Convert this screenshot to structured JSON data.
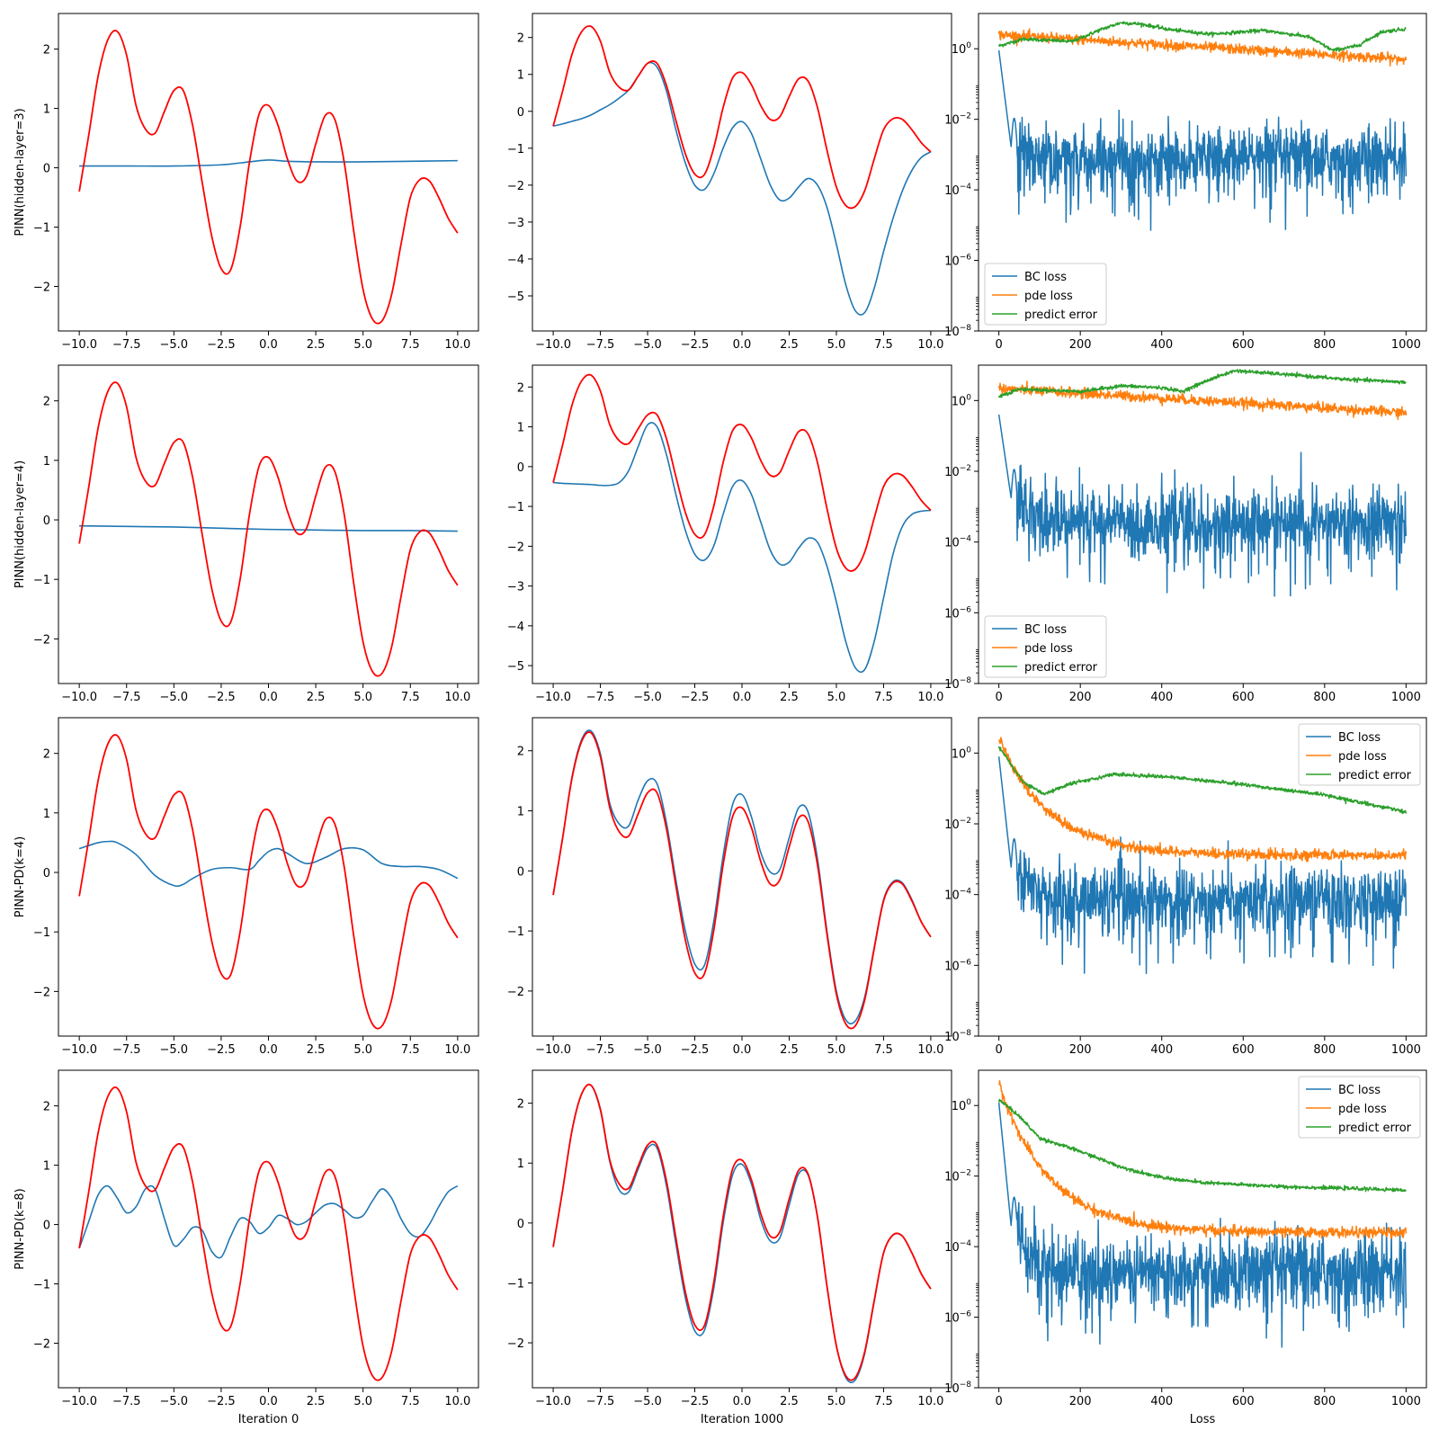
{
  "chart_data": {
    "type": "line",
    "layout": "4x3 grid",
    "columns": [
      {
        "xlabel": "Iteration 0"
      },
      {
        "xlabel": "Iteration 1000"
      },
      {
        "xlabel": "Loss"
      }
    ],
    "rows": [
      {
        "ylabel": "PINN(hidden-layer=3)"
      },
      {
        "ylabel": "PINN(hidden-layer=4)"
      },
      {
        "ylabel": "PINN-PD(k=4)"
      },
      {
        "ylabel": "PINN-PD(k=8)"
      }
    ],
    "solution_axes": {
      "xlim": [
        -11.1,
        11.1
      ],
      "xticks": [
        -10.0,
        -7.5,
        -5.0,
        -2.5,
        0.0,
        2.5,
        5.0,
        7.5,
        10.0
      ],
      "xtick_labels": [
        "−10.0",
        "−7.5",
        "−5.0",
        "−2.5",
        "0.0",
        "2.5",
        "5.0",
        "7.5",
        "10.0"
      ]
    },
    "exact_solution": {
      "color": "#ff0000",
      "x": [
        -10.0,
        -9.5,
        -9.0,
        -8.5,
        -8.0,
        -7.5,
        -7.0,
        -6.5,
        -6.0,
        -5.5,
        -5.0,
        -4.5,
        -4.0,
        -3.5,
        -3.0,
        -2.5,
        -2.0,
        -1.5,
        -1.0,
        -0.5,
        0.0,
        0.5,
        1.0,
        1.5,
        2.0,
        2.5,
        3.0,
        3.5,
        4.0,
        4.5,
        5.0,
        5.5,
        6.0,
        6.5,
        7.0,
        7.5,
        8.0,
        8.5,
        9.0,
        9.5,
        10.0
      ],
      "y": [
        -0.4,
        0.55,
        1.55,
        2.15,
        2.3,
        1.9,
        1.05,
        0.65,
        0.58,
        0.95,
        1.3,
        1.3,
        0.7,
        -0.25,
        -1.15,
        -1.7,
        -1.72,
        -1.0,
        0.1,
        0.9,
        1.05,
        0.72,
        0.15,
        -0.22,
        -0.15,
        0.4,
        0.88,
        0.82,
        0.1,
        -1.05,
        -2.05,
        -2.55,
        -2.58,
        -2.15,
        -1.3,
        -0.5,
        -0.2,
        -0.22,
        -0.5,
        -0.85,
        -1.1
      ]
    },
    "panels": [
      {
        "row": 0,
        "col": 0,
        "ylim": [
          -2.75,
          2.6
        ],
        "yticks": [
          -2,
          -1,
          0,
          1,
          2
        ],
        "ytick_labels": [
          "−2",
          "−1",
          "0",
          "1",
          "2"
        ],
        "pred_x": [
          -10,
          -7.5,
          -5,
          -2.5,
          -1,
          0,
          1,
          2.5,
          5,
          7.5,
          10
        ],
        "pred_y": [
          0.03,
          0.03,
          0.03,
          0.05,
          0.1,
          0.13,
          0.11,
          0.1,
          0.1,
          0.11,
          0.12
        ]
      },
      {
        "row": 0,
        "col": 1,
        "ylim": [
          -5.95,
          2.65
        ],
        "yticks": [
          -5,
          -4,
          -3,
          -2,
          -1,
          0,
          1,
          2
        ],
        "ytick_labels": [
          "−5",
          "−4",
          "−3",
          "−2",
          "−1",
          "0",
          "1",
          "2"
        ],
        "pred_x": [
          -10.0,
          -9.5,
          -9.0,
          -8.5,
          -8.0,
          -7.5,
          -7.0,
          -6.5,
          -6.0,
          -5.5,
          -5.0,
          -4.5,
          -4.0,
          -3.5,
          -3.0,
          -2.5,
          -2.0,
          -1.5,
          -1.0,
          -0.5,
          0.0,
          0.5,
          1.0,
          1.5,
          2.0,
          2.5,
          3.0,
          3.5,
          4.0,
          4.5,
          5.0,
          5.5,
          6.0,
          6.5,
          7.0,
          7.5,
          8.0,
          8.5,
          9.0,
          9.5,
          10.0
        ],
        "pred_y": [
          -0.4,
          -0.34,
          -0.27,
          -0.2,
          -0.1,
          0.04,
          0.18,
          0.36,
          0.58,
          0.95,
          1.3,
          1.2,
          0.55,
          -0.5,
          -1.4,
          -2.0,
          -2.12,
          -1.7,
          -1.0,
          -0.45,
          -0.28,
          -0.6,
          -1.3,
          -2.0,
          -2.4,
          -2.35,
          -2.05,
          -1.82,
          -2.0,
          -2.6,
          -3.6,
          -4.7,
          -5.4,
          -5.45,
          -4.8,
          -3.8,
          -2.9,
          -2.15,
          -1.6,
          -1.25,
          -1.1
        ]
      },
      {
        "row": 0,
        "col": 2,
        "type": "loss",
        "bc_start": 0.9,
        "bc_min": 0.0017,
        "bc_level": 0.0008,
        "bc_jitter": 0.9,
        "pde_start": 2.5,
        "pde_end": 0.5,
        "pred_points": [
          [
            0,
            1.2
          ],
          [
            60,
            1.9
          ],
          [
            180,
            1.6
          ],
          [
            250,
            3.5
          ],
          [
            300,
            5.5
          ],
          [
            350,
            5.0
          ],
          [
            420,
            3.5
          ],
          [
            520,
            2.6
          ],
          [
            650,
            3.3
          ],
          [
            760,
            2.2
          ],
          [
            820,
            0.9
          ],
          [
            880,
            1.2
          ],
          [
            940,
            3.0
          ],
          [
            1000,
            3.7
          ]
        ]
      },
      {
        "row": 1,
        "col": 0,
        "ylim": [
          -2.75,
          2.6
        ],
        "yticks": [
          -2,
          -1,
          0,
          1,
          2
        ],
        "ytick_labels": [
          "−2",
          "−1",
          "0",
          "1",
          "2"
        ],
        "pred_x": [
          -10,
          -7.5,
          -5,
          -2.5,
          0,
          2.5,
          5,
          7.5,
          10
        ],
        "pred_y": [
          -0.1,
          -0.11,
          -0.12,
          -0.14,
          -0.16,
          -0.17,
          -0.18,
          -0.18,
          -0.19
        ]
      },
      {
        "row": 1,
        "col": 1,
        "ylim": [
          -5.45,
          2.55
        ],
        "yticks": [
          -5,
          -4,
          -3,
          -2,
          -1,
          0,
          1,
          2
        ],
        "ytick_labels": [
          "−5",
          "−4",
          "−3",
          "−2",
          "−1",
          "0",
          "1",
          "2"
        ],
        "pred_x": [
          -10.0,
          -9.5,
          -9.0,
          -8.5,
          -8.0,
          -7.5,
          -7.0,
          -6.5,
          -6.0,
          -5.5,
          -5.0,
          -4.5,
          -4.0,
          -3.5,
          -3.0,
          -2.5,
          -2.0,
          -1.5,
          -1.0,
          -0.5,
          0.0,
          0.5,
          1.0,
          1.5,
          2.0,
          2.5,
          3.0,
          3.5,
          4.0,
          4.5,
          5.0,
          5.5,
          6.0,
          6.5,
          7.0,
          7.5,
          8.0,
          8.5,
          9.0,
          9.5,
          10.0
        ],
        "pred_y": [
          -0.4,
          -0.42,
          -0.43,
          -0.44,
          -0.45,
          -0.47,
          -0.47,
          -0.4,
          -0.1,
          0.5,
          1.05,
          1.0,
          0.3,
          -0.7,
          -1.6,
          -2.2,
          -2.35,
          -2.0,
          -1.2,
          -0.5,
          -0.35,
          -0.7,
          -1.4,
          -2.1,
          -2.45,
          -2.4,
          -2.05,
          -1.8,
          -1.9,
          -2.5,
          -3.4,
          -4.4,
          -5.05,
          -5.1,
          -4.4,
          -3.3,
          -2.2,
          -1.5,
          -1.2,
          -1.12,
          -1.1
        ]
      },
      {
        "row": 1,
        "col": 2,
        "type": "loss",
        "bc_start": 0.4,
        "bc_min": 0.0018,
        "bc_level": 0.0004,
        "bc_jitter": 1.0,
        "pde_start": 2.2,
        "pde_end": 0.45,
        "pred_points": [
          [
            0,
            1.3
          ],
          [
            50,
            2.1
          ],
          [
            200,
            1.8
          ],
          [
            300,
            2.6
          ],
          [
            400,
            2.3
          ],
          [
            450,
            1.8
          ],
          [
            520,
            4.0
          ],
          [
            580,
            7.0
          ],
          [
            700,
            5.5
          ],
          [
            850,
            4.0
          ],
          [
            1000,
            3.3
          ]
        ]
      },
      {
        "row": 2,
        "col": 0,
        "ylim": [
          -2.75,
          2.6
        ],
        "yticks": [
          -2,
          -1,
          0,
          1,
          2
        ],
        "ytick_labels": [
          "−2",
          "−1",
          "0",
          "1",
          "2"
        ],
        "pred_x": [
          -10.0,
          -9.0,
          -8.5,
          -8.0,
          -7.0,
          -6.0,
          -5.0,
          -4.5,
          -4.0,
          -3.0,
          -2.0,
          -1.0,
          -0.5,
          0.0,
          0.5,
          1.0,
          2.0,
          3.0,
          4.0,
          5.0,
          6.0,
          7.0,
          8.0,
          9.0,
          10.0
        ],
        "pred_y": [
          0.4,
          0.5,
          0.52,
          0.5,
          0.3,
          -0.05,
          -0.22,
          -0.2,
          -0.1,
          0.05,
          0.08,
          0.05,
          0.2,
          0.35,
          0.4,
          0.32,
          0.15,
          0.25,
          0.4,
          0.38,
          0.15,
          0.1,
          0.1,
          0.05,
          -0.1
        ]
      },
      {
        "row": 2,
        "col": 1,
        "ylim": [
          -2.75,
          2.55
        ],
        "yticks": [
          -2,
          -1,
          0,
          1,
          2
        ],
        "ytick_labels": [
          "−2",
          "−1",
          "0",
          "1",
          "2"
        ],
        "pred_x": [
          -10.0,
          -9.5,
          -9.0,
          -8.5,
          -8.0,
          -7.5,
          -7.0,
          -6.5,
          -6.0,
          -5.5,
          -5.0,
          -4.5,
          -4.0,
          -3.5,
          -3.0,
          -2.5,
          -2.0,
          -1.5,
          -1.0,
          -0.5,
          0.0,
          0.5,
          1.0,
          1.5,
          2.0,
          2.5,
          3.0,
          3.5,
          4.0,
          4.5,
          5.0,
          5.5,
          6.0,
          6.5,
          7.0,
          7.5,
          8.0,
          8.5,
          9.0,
          9.5,
          10.0
        ],
        "pred_y": [
          -0.4,
          0.55,
          1.57,
          2.18,
          2.33,
          1.95,
          1.12,
          0.78,
          0.75,
          1.18,
          1.5,
          1.45,
          0.8,
          -0.15,
          -1.0,
          -1.55,
          -1.58,
          -0.85,
          0.25,
          1.1,
          1.27,
          0.9,
          0.3,
          -0.02,
          0.02,
          0.55,
          1.05,
          0.98,
          0.2,
          -1.0,
          -2.0,
          -2.48,
          -2.5,
          -2.1,
          -1.28,
          -0.48,
          -0.18,
          -0.2,
          -0.48,
          -0.85,
          -1.1
        ]
      },
      {
        "row": 2,
        "col": 2,
        "type": "loss",
        "bc_start": 0.8,
        "bc_min": 0.0006,
        "bc_level": 8e-05,
        "bc_jitter": 1.0,
        "pde_start": 2.5,
        "pde_end": 0.0013,
        "pred_points": [
          [
            0,
            1.5
          ],
          [
            60,
            0.15
          ],
          [
            110,
            0.07
          ],
          [
            180,
            0.14
          ],
          [
            280,
            0.25
          ],
          [
            400,
            0.22
          ],
          [
            600,
            0.13
          ],
          [
            800,
            0.065
          ],
          [
            1000,
            0.022
          ]
        ]
      },
      {
        "row": 3,
        "col": 0,
        "ylim": [
          -2.75,
          2.6
        ],
        "yticks": [
          -2,
          -1,
          0,
          1,
          2
        ],
        "ytick_labels": [
          "−2",
          "−1",
          "0",
          "1",
          "2"
        ],
        "pred_x": [
          -10.0,
          -9.5,
          -9.0,
          -8.5,
          -8.0,
          -7.5,
          -7.0,
          -6.5,
          -6.0,
          -5.5,
          -5.0,
          -4.5,
          -4.0,
          -3.5,
          -3.0,
          -2.5,
          -2.0,
          -1.5,
          -1.0,
          -0.5,
          0.0,
          0.5,
          1.0,
          1.5,
          2.0,
          2.5,
          3.0,
          3.5,
          4.0,
          4.5,
          5.0,
          5.5,
          6.0,
          6.5,
          7.0,
          7.5,
          8.0,
          8.5,
          9.0,
          9.5,
          10.0
        ],
        "pred_y": [
          -0.4,
          0.05,
          0.5,
          0.65,
          0.45,
          0.2,
          0.3,
          0.6,
          0.6,
          0.1,
          -0.35,
          -0.25,
          -0.05,
          -0.1,
          -0.45,
          -0.55,
          -0.2,
          0.1,
          0.05,
          -0.15,
          -0.05,
          0.15,
          0.1,
          0.0,
          0.05,
          0.2,
          0.33,
          0.35,
          0.25,
          0.12,
          0.15,
          0.4,
          0.6,
          0.45,
          0.1,
          -0.15,
          -0.2,
          0.0,
          0.3,
          0.55,
          0.65
        ]
      },
      {
        "row": 3,
        "col": 1,
        "ylim": [
          -2.75,
          2.55
        ],
        "yticks": [
          -2,
          -1,
          0,
          1,
          2
        ],
        "ytick_labels": [
          "−2",
          "−1",
          "0",
          "1",
          "2"
        ],
        "pred_x": [
          -10.0,
          -9.5,
          -9.0,
          -8.5,
          -8.0,
          -7.5,
          -7.0,
          -6.5,
          -6.0,
          -5.5,
          -5.0,
          -4.5,
          -4.0,
          -3.5,
          -3.0,
          -2.5,
          -2.0,
          -1.5,
          -1.0,
          -0.5,
          0.0,
          0.5,
          1.0,
          1.5,
          2.0,
          2.5,
          3.0,
          3.5,
          4.0,
          4.5,
          5.0,
          5.5,
          6.0,
          6.5,
          7.0,
          7.5,
          8.0,
          8.5,
          9.0,
          9.5,
          10.0
        ],
        "pred_y": [
          -0.4,
          0.55,
          1.55,
          2.15,
          2.3,
          1.88,
          1.02,
          0.55,
          0.52,
          0.9,
          1.25,
          1.25,
          0.62,
          -0.35,
          -1.25,
          -1.8,
          -1.8,
          -1.1,
          0.0,
          0.8,
          0.98,
          0.65,
          0.05,
          -0.3,
          -0.25,
          0.3,
          0.82,
          0.8,
          0.1,
          -1.05,
          -2.05,
          -2.58,
          -2.62,
          -2.18,
          -1.32,
          -0.5,
          -0.2,
          -0.22,
          -0.5,
          -0.85,
          -1.1
        ]
      },
      {
        "row": 3,
        "col": 2,
        "type": "loss",
        "bc_start": 1.2,
        "bc_min": 0.0004,
        "bc_level": 2e-05,
        "bc_jitter": 1.1,
        "pde_start": 4.0,
        "pde_end": 0.00025,
        "pred_points": [
          [
            0,
            1.5
          ],
          [
            50,
            0.5
          ],
          [
            100,
            0.12
          ],
          [
            200,
            0.05
          ],
          [
            300,
            0.018
          ],
          [
            400,
            0.009
          ],
          [
            500,
            0.0065
          ],
          [
            700,
            0.005
          ],
          [
            850,
            0.0045
          ],
          [
            1000,
            0.004
          ]
        ]
      }
    ],
    "loss_axes": {
      "xlim": [
        -50,
        1050
      ],
      "xticks": [
        0,
        200,
        400,
        600,
        800,
        1000
      ],
      "xtick_labels": [
        "0",
        "200",
        "400",
        "600",
        "800",
        "1000"
      ],
      "ylim": [
        1e-08,
        10
      ],
      "yscale": "log",
      "yticks": [
        1e-08,
        1e-06,
        0.0001,
        0.01,
        1
      ],
      "ytick_bases": [
        "10",
        "10",
        "10",
        "10",
        "10"
      ],
      "ytick_exponents": [
        "−8",
        "−6",
        "−4",
        "−2",
        "0"
      ]
    },
    "legend": {
      "entries": [
        {
          "label": "BC loss",
          "color": "#1f77b4"
        },
        {
          "label": "pde loss",
          "color": "#ff7f0e"
        },
        {
          "label": "predict error",
          "color": "#2ca02c"
        }
      ],
      "placement": [
        "lower left",
        "lower left",
        "upper right",
        "upper right"
      ]
    },
    "colors": {
      "prediction": "#1f77b4",
      "exact": "#ff0000",
      "bc": "#1f77b4",
      "pde": "#ff7f0e",
      "predict_error": "#2ca02c"
    }
  }
}
